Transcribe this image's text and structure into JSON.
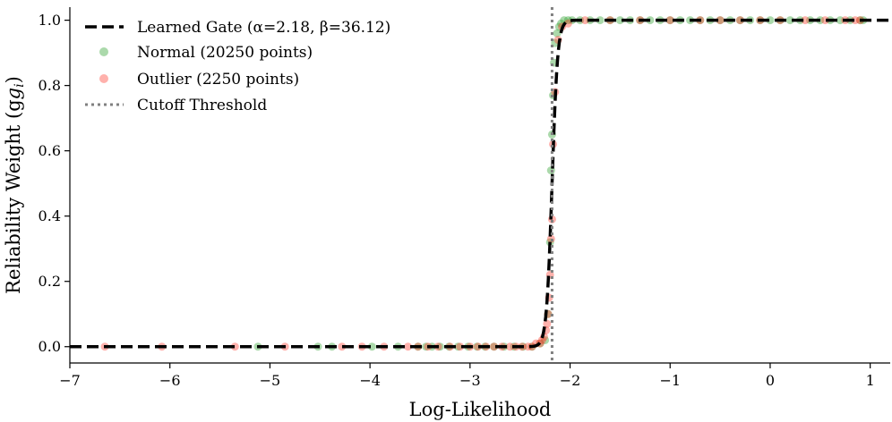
{
  "chart_data": {
    "type": "scatter",
    "xlabel": "Log-Likelihood",
    "ylabel": "Reliability Weight (g",
    "ylabel_sub": "i",
    "ylabel_close": ")",
    "xlim": [
      -7.0,
      1.2
    ],
    "ylim": [
      -0.05,
      1.04
    ],
    "x_ticks": [
      -7,
      -6,
      -5,
      -4,
      -3,
      -2,
      -1,
      0,
      1
    ],
    "x_tick_labels": [
      "−7",
      "−6",
      "−5",
      "−4",
      "−3",
      "−2",
      "−1",
      "0",
      "1"
    ],
    "y_ticks": [
      0.0,
      0.2,
      0.4,
      0.6,
      0.8,
      1.0
    ],
    "y_tick_labels": [
      "0.0",
      "0.2",
      "0.4",
      "0.6",
      "0.8",
      "1.0"
    ],
    "grid": false,
    "legend_position": "top-left",
    "legend": [
      {
        "label": "Learned Gate (α=2.18, β=36.12)",
        "style": "dashed-line",
        "color": "#000000"
      },
      {
        "label": "Normal (20250 points)",
        "style": "marker",
        "color": "#2ca02c"
      },
      {
        "label": "Outlier (2250 points)",
        "style": "marker",
        "color": "#ff3b30"
      },
      {
        "label": "Cutoff Threshold",
        "style": "dotted-line",
        "color": "#808080"
      }
    ],
    "gate": {
      "alpha": 2.18,
      "beta": 36.12,
      "formula": "sigmoid(beta * (x + alpha))"
    },
    "cutoff": -2.18,
    "series": [
      {
        "name": "Normal (20250 points)",
        "color": "#2ca02c",
        "x": [
          -5.12,
          -4.52,
          -4.38,
          -3.98,
          -3.72,
          -3.52,
          -3.44,
          -3.38,
          -3.3,
          -3.21,
          -3.12,
          -3.02,
          -2.93,
          -2.85,
          -2.76,
          -2.66,
          -2.56,
          -2.47,
          -2.38,
          -2.3,
          -2.25,
          -2.22,
          -2.2,
          -2.19,
          -2.18,
          -2.17,
          -2.16,
          -2.15,
          -2.13,
          -2.11,
          -2.09,
          -2.06,
          -2.02,
          -1.98,
          -1.9,
          -1.8,
          -1.7,
          -1.6,
          -1.5,
          -1.4,
          -1.3,
          -1.2,
          -1.1,
          -1.0,
          -0.9,
          -0.8,
          -0.7,
          -0.6,
          -0.5,
          -0.4,
          -0.3,
          -0.2,
          -0.1,
          0.0,
          0.1,
          0.2,
          0.3,
          0.4,
          0.5,
          0.6,
          0.7,
          0.8,
          0.9,
          0.93
        ],
        "y": [
          0.0,
          0.0,
          0.0,
          0.0,
          0.0,
          0.0,
          0.0,
          0.0,
          0.0,
          0.0,
          0.0,
          0.0,
          0.0,
          0.0,
          0.0,
          0.0,
          0.0,
          0.0,
          0.0,
          0.01,
          0.02,
          0.1,
          0.32,
          0.54,
          0.65,
          0.77,
          0.87,
          0.93,
          0.96,
          0.98,
          0.99,
          1.0,
          1.0,
          1.0,
          1.0,
          1.0,
          1.0,
          1.0,
          1.0,
          1.0,
          1.0,
          1.0,
          1.0,
          1.0,
          1.0,
          1.0,
          1.0,
          1.0,
          1.0,
          1.0,
          1.0,
          1.0,
          1.0,
          1.0,
          1.0,
          1.0,
          1.0,
          1.0,
          1.0,
          1.0,
          1.0,
          1.0,
          1.0,
          1.0
        ]
      },
      {
        "name": "Outlier (2250 points)",
        "color": "#ff3b30",
        "x": [
          -6.65,
          -6.08,
          -5.35,
          -4.85,
          -4.28,
          -4.08,
          -3.86,
          -3.62,
          -3.52,
          -3.42,
          -3.32,
          -3.2,
          -3.1,
          -3.0,
          -2.92,
          -2.84,
          -2.76,
          -2.68,
          -2.6,
          -2.54,
          -2.48,
          -2.42,
          -2.38,
          -2.34,
          -2.3,
          -2.28,
          -2.26,
          -2.24,
          -2.23,
          -2.22,
          -2.21,
          -2.2,
          -2.19,
          -2.18,
          -2.17,
          -2.15,
          -2.12,
          -2.08,
          -2.02,
          -1.85,
          -1.6,
          -1.3,
          -1.0,
          -0.7,
          -0.5,
          -0.3,
          -0.1,
          0.1,
          0.35,
          0.55,
          0.75,
          0.85,
          0.9
        ],
        "y": [
          0.0,
          0.0,
          0.0,
          0.0,
          0.0,
          0.0,
          0.0,
          0.0,
          0.0,
          0.0,
          0.0,
          0.0,
          0.0,
          0.0,
          0.0,
          0.0,
          0.0,
          0.0,
          0.0,
          0.0,
          0.0,
          0.0,
          0.0,
          0.01,
          0.01,
          0.02,
          0.03,
          0.05,
          0.07,
          0.1,
          0.15,
          0.22,
          0.33,
          0.39,
          0.62,
          0.78,
          0.94,
          0.98,
          0.99,
          1.0,
          1.0,
          1.0,
          1.0,
          1.0,
          1.0,
          1.0,
          1.0,
          1.0,
          1.0,
          1.0,
          1.0,
          1.0,
          1.0
        ]
      }
    ]
  }
}
